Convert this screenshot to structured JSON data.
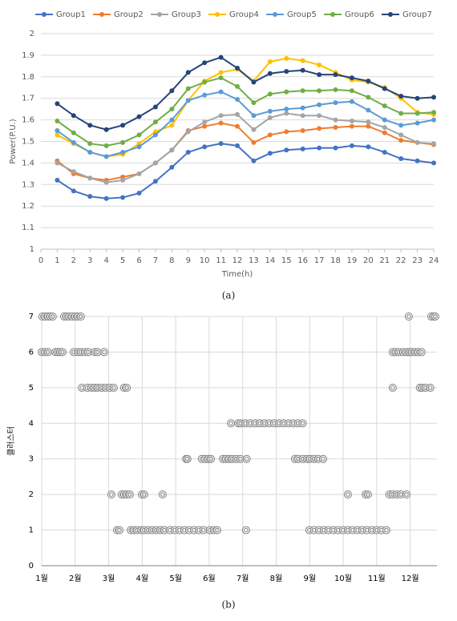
{
  "chart_data": [
    {
      "type": "line",
      "caption": "(a)",
      "x_label": "Time(h)",
      "y_label": "Power(P.U.)",
      "x": [
        1,
        2,
        3,
        4,
        5,
        6,
        7,
        8,
        9,
        10,
        11,
        12,
        13,
        14,
        15,
        16,
        17,
        18,
        19,
        20,
        21,
        22,
        23,
        24
      ],
      "xlim": [
        0,
        24
      ],
      "xticks": [
        0,
        1,
        2,
        3,
        4,
        5,
        6,
        7,
        8,
        9,
        10,
        11,
        12,
        13,
        14,
        15,
        16,
        17,
        18,
        19,
        20,
        21,
        22,
        23,
        24
      ],
      "ylim": [
        1,
        2
      ],
      "yticks": [
        1,
        1.1,
        1.2,
        1.3,
        1.4,
        1.5,
        1.6,
        1.7,
        1.8,
        1.9,
        2
      ],
      "grid": true,
      "legend": "top",
      "series": [
        {
          "name": "Group1",
          "color": "#4472c4",
          "values": [
            1.32,
            1.27,
            1.245,
            1.235,
            1.24,
            1.26,
            1.315,
            1.38,
            1.45,
            1.475,
            1.49,
            1.48,
            1.41,
            1.445,
            1.46,
            1.465,
            1.47,
            1.47,
            1.48,
            1.475,
            1.45,
            1.42,
            1.41,
            1.4
          ]
        },
        {
          "name": "Group2",
          "color": "#ed7d31",
          "values": [
            1.41,
            1.35,
            1.33,
            1.32,
            1.335,
            1.35,
            1.4,
            1.46,
            1.55,
            1.57,
            1.585,
            1.57,
            1.495,
            1.53,
            1.545,
            1.55,
            1.56,
            1.565,
            1.57,
            1.57,
            1.54,
            1.505,
            1.495,
            1.485
          ]
        },
        {
          "name": "Group3",
          "color": "#a5a5a5",
          "values": [
            1.4,
            1.36,
            1.33,
            1.31,
            1.32,
            1.35,
            1.4,
            1.46,
            1.545,
            1.59,
            1.62,
            1.625,
            1.555,
            1.61,
            1.63,
            1.62,
            1.62,
            1.6,
            1.595,
            1.59,
            1.565,
            1.53,
            1.495,
            1.49
          ]
        },
        {
          "name": "Group4",
          "color": "#ffc000",
          "values": [
            1.53,
            1.49,
            1.45,
            1.43,
            1.44,
            1.49,
            1.545,
            1.575,
            1.69,
            1.78,
            1.82,
            1.835,
            1.78,
            1.87,
            1.885,
            1.875,
            1.855,
            1.82,
            1.785,
            1.775,
            1.75,
            1.7,
            1.635,
            1.625
          ]
        },
        {
          "name": "Group5",
          "color": "#5b9bd5",
          "values": [
            1.55,
            1.495,
            1.45,
            1.43,
            1.45,
            1.475,
            1.53,
            1.6,
            1.69,
            1.715,
            1.73,
            1.695,
            1.62,
            1.64,
            1.65,
            1.655,
            1.67,
            1.68,
            1.685,
            1.645,
            1.6,
            1.575,
            1.585,
            1.6
          ]
        },
        {
          "name": "Group6",
          "color": "#70ad47",
          "values": [
            1.595,
            1.54,
            1.49,
            1.48,
            1.495,
            1.53,
            1.59,
            1.65,
            1.745,
            1.775,
            1.795,
            1.755,
            1.68,
            1.72,
            1.73,
            1.735,
            1.735,
            1.74,
            1.735,
            1.705,
            1.665,
            1.63,
            1.63,
            1.635
          ]
        },
        {
          "name": "Group7",
          "color": "#264478",
          "values": [
            1.675,
            1.62,
            1.575,
            1.555,
            1.575,
            1.615,
            1.66,
            1.735,
            1.82,
            1.865,
            1.89,
            1.84,
            1.775,
            1.815,
            1.825,
            1.83,
            1.81,
            1.81,
            1.795,
            1.78,
            1.745,
            1.71,
            1.7,
            1.705
          ]
        }
      ]
    },
    {
      "type": "scatter",
      "caption": "(b)",
      "y_label": "클러스터",
      "color": "#7f7f7f",
      "grid": true,
      "xlim": [
        1,
        12.8
      ],
      "xticks": [
        {
          "value": 1,
          "label": "1월"
        },
        {
          "value": 2,
          "label": "2월"
        },
        {
          "value": 3,
          "label": "3월"
        },
        {
          "value": 4,
          "label": "4월"
        },
        {
          "value": 5,
          "label": "5월"
        },
        {
          "value": 6,
          "label": "6월"
        },
        {
          "value": 7,
          "label": "7월"
        },
        {
          "value": 8,
          "label": "8월"
        },
        {
          "value": 9,
          "label": "9월"
        },
        {
          "value": 10,
          "label": "10월"
        },
        {
          "value": 11,
          "label": "11월"
        },
        {
          "value": 12,
          "label": "12월"
        }
      ],
      "ylim": [
        0,
        7
      ],
      "yticks": [
        0,
        1,
        2,
        3,
        4,
        5,
        6,
        7
      ],
      "x": [
        1.02,
        1.1,
        1.19,
        1.26,
        1.33,
        1.67,
        1.74,
        1.81,
        1.91,
        2.0,
        2.08,
        2.17,
        11.96,
        12.63,
        12.7,
        12.75,
        1.0,
        1.1,
        1.19,
        1.41,
        1.48,
        1.55,
        1.62,
        1.96,
        2.08,
        2.17,
        2.29,
        2.39,
        2.58,
        2.67,
        2.87,
        11.48,
        11.57,
        11.67,
        11.79,
        11.89,
        11.98,
        12.05,
        12.15,
        12.24,
        12.34,
        2.2,
        2.36,
        2.48,
        2.58,
        2.67,
        2.79,
        2.91,
        3.03,
        3.15,
        3.46,
        3.54,
        11.48,
        12.29,
        12.36,
        12.46,
        12.6,
        6.65,
        6.87,
        6.94,
        7.08,
        7.22,
        7.37,
        7.51,
        7.65,
        7.79,
        7.94,
        8.08,
        8.22,
        8.37,
        8.51,
        8.65,
        8.79,
        5.31,
        5.35,
        5.78,
        5.88,
        5.98,
        6.05,
        6.41,
        6.5,
        6.6,
        6.69,
        6.81,
        6.93,
        7.12,
        8.56,
        8.66,
        8.8,
        8.92,
        9.01,
        9.13,
        9.25,
        9.4,
        3.08,
        3.39,
        3.46,
        3.54,
        3.63,
        3.99,
        4.06,
        4.61,
        10.14,
        10.67,
        10.74,
        11.38,
        11.48,
        11.6,
        11.72,
        11.89,
        3.25,
        3.32,
        3.66,
        3.75,
        3.85,
        3.97,
        4.06,
        4.18,
        4.3,
        4.42,
        4.54,
        4.66,
        4.83,
        4.97,
        5.11,
        5.26,
        5.4,
        5.55,
        5.69,
        5.83,
        6.02,
        6.14,
        6.24,
        7.1,
        8.99,
        9.13,
        9.28,
        9.42,
        9.56,
        9.71,
        9.85,
        10.0,
        10.14,
        10.28,
        10.43,
        10.57,
        10.71,
        10.86,
        11.0,
        11.14,
        11.29
      ],
      "y": [
        7,
        7,
        7,
        7,
        7,
        7,
        7,
        7,
        7,
        7,
        7,
        7,
        7,
        7,
        7,
        7,
        6,
        6,
        6,
        6,
        6,
        6,
        6,
        6,
        6,
        6,
        6,
        6,
        6,
        6,
        6,
        6,
        6,
        6,
        6,
        6,
        6,
        6,
        6,
        6,
        6,
        5,
        5,
        5,
        5,
        5,
        5,
        5,
        5,
        5,
        5,
        5,
        5,
        5,
        5,
        5,
        5,
        4,
        4,
        4,
        4,
        4,
        4,
        4,
        4,
        4,
        4,
        4,
        4,
        4,
        4,
        4,
        4,
        3,
        3,
        3,
        3,
        3,
        3,
        3,
        3,
        3,
        3,
        3,
        3,
        3,
        3,
        3,
        3,
        3,
        3,
        3,
        3,
        3,
        2,
        2,
        2,
        2,
        2,
        2,
        2,
        2,
        2,
        2,
        2,
        2,
        2,
        2,
        2,
        2,
        1,
        1,
        1,
        1,
        1,
        1,
        1,
        1,
        1,
        1,
        1,
        1,
        1,
        1,
        1,
        1,
        1,
        1,
        1,
        1,
        1,
        1,
        1,
        1,
        1,
        1,
        1,
        1,
        1,
        1,
        1,
        1,
        1,
        1,
        1,
        1,
        1,
        1,
        1,
        1,
        1
      ]
    }
  ]
}
